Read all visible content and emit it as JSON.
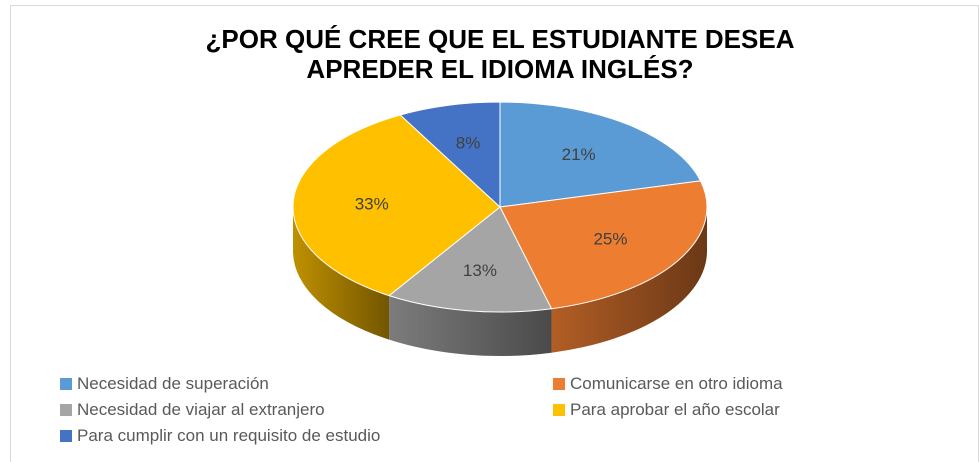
{
  "chart_data": {
    "type": "pie",
    "title": "¿POR QUÉ CREE QUE EL ESTUDIANTE DESEA APREDER EL IDIOMA INGLÉS?",
    "categories": [
      "Necesidad de superación",
      "Comunicarse en otro idioma",
      "Necesidad de viajar al extranjero",
      "Para aprobar el año escolar",
      "Para cumplir con un requisito de estudio"
    ],
    "values": [
      21,
      25,
      13,
      33,
      8
    ],
    "value_labels": [
      "21%",
      "25%",
      "13%",
      "33%",
      "8%"
    ],
    "colors": [
      "#5b9bd5",
      "#ed7d31",
      "#a5a5a5",
      "#ffc000",
      "#4472c4"
    ],
    "legend": "bottom"
  }
}
